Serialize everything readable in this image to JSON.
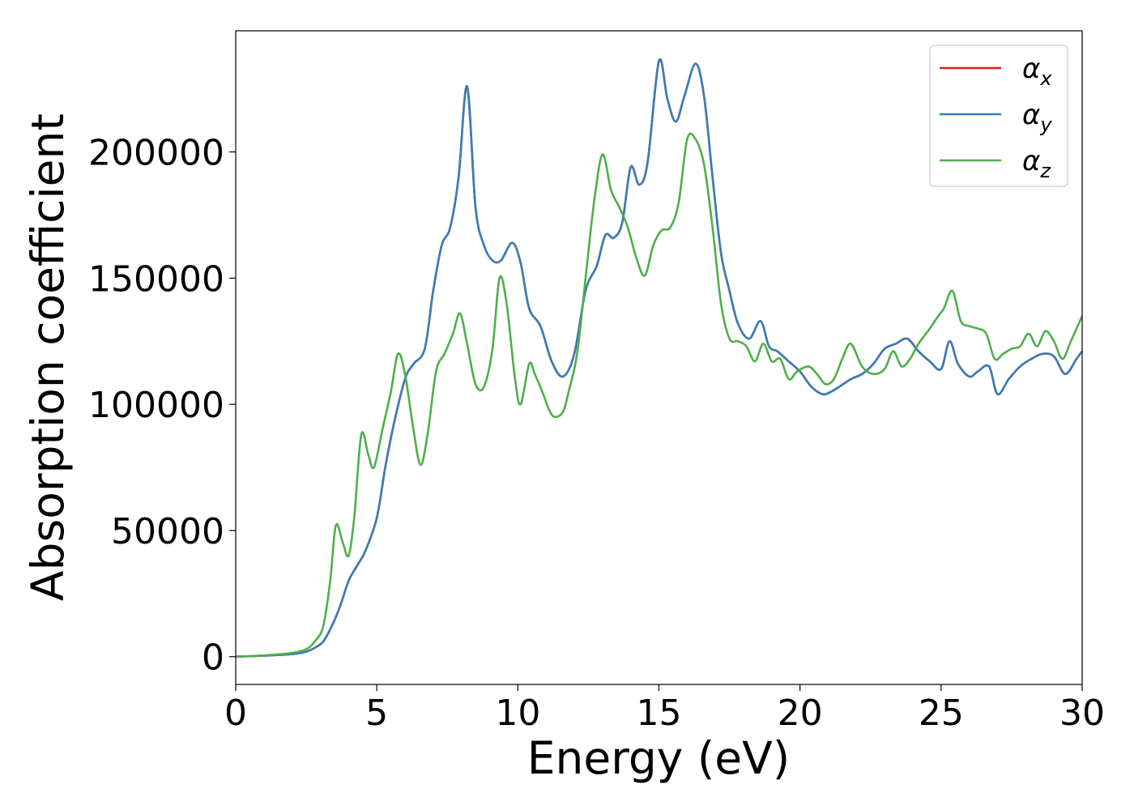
{
  "chart_data": {
    "type": "line",
    "title": "",
    "xlabel": "Energy (eV)",
    "ylabel": "Absorption coefficient",
    "xlim": [
      0,
      30
    ],
    "ylim": [
      -11000,
      248000
    ],
    "xticks": [
      0,
      5,
      10,
      15,
      20,
      25,
      30
    ],
    "yticks": [
      0,
      50000,
      100000,
      150000,
      200000
    ],
    "grid": false,
    "legend": {
      "placement": "top-right",
      "entries": [
        {
          "base": "α",
          "sub": "x",
          "color": "#e41a1c"
        },
        {
          "base": "α",
          "sub": "y",
          "color": "#377eb8"
        },
        {
          "base": "α",
          "sub": "z",
          "color": "#4daf4a"
        }
      ]
    },
    "series": [
      {
        "name": "α_x",
        "color": "#e41a1c",
        "x": [
          0,
          1,
          2,
          2.5,
          2.8,
          3.1,
          3.4,
          3.7,
          4.0,
          4.3,
          4.6,
          5.0,
          5.3,
          5.6,
          6.0,
          6.3,
          6.7,
          7.0,
          7.3,
          7.6,
          7.9,
          8.2,
          8.5,
          8.8,
          9.1,
          9.4,
          9.8,
          10.1,
          10.4,
          10.8,
          11.2,
          11.6,
          12.0,
          12.4,
          12.8,
          13.1,
          13.4,
          13.7,
          14.0,
          14.3,
          14.6,
          15.0,
          15.3,
          15.6,
          15.9,
          16.3,
          16.6,
          16.9,
          17.2,
          17.5,
          17.8,
          18.2,
          18.6,
          18.9,
          19.2,
          19.6,
          20.0,
          20.4,
          20.8,
          21.1,
          21.4,
          21.8,
          22.2,
          22.6,
          23.0,
          23.4,
          23.8,
          24.2,
          24.6,
          25.0,
          25.3,
          25.6,
          26.0,
          26.3,
          26.7,
          27.0,
          27.4,
          27.8,
          28.2,
          28.6,
          29.0,
          29.4,
          29.8,
          30.0
        ],
        "y": [
          0,
          400,
          1000,
          2000,
          3500,
          6000,
          12000,
          20000,
          30000,
          36000,
          42000,
          55000,
          75000,
          92000,
          110000,
          116000,
          122000,
          145000,
          163000,
          170000,
          190000,
          226000,
          178000,
          163000,
          157000,
          157000,
          164000,
          156000,
          138000,
          131000,
          117000,
          111000,
          120000,
          145000,
          155000,
          167000,
          166000,
          172000,
          194000,
          187000,
          196000,
          236000,
          221000,
          212000,
          222000,
          235000,
          222000,
          190000,
          160000,
          145000,
          132000,
          126000,
          133000,
          123000,
          121000,
          117000,
          113000,
          107000,
          104000,
          105000,
          107000,
          110000,
          112000,
          116000,
          122000,
          124000,
          126000,
          121000,
          117000,
          114000,
          125000,
          116000,
          111000,
          113000,
          115000,
          104000,
          110000,
          115000,
          118000,
          120000,
          119000,
          112000,
          118000,
          121000
        ]
      },
      {
        "name": "α_y",
        "color": "#377eb8",
        "x": [
          0,
          1,
          2,
          2.5,
          2.8,
          3.1,
          3.4,
          3.7,
          4.0,
          4.3,
          4.6,
          5.0,
          5.3,
          5.6,
          6.0,
          6.3,
          6.7,
          7.0,
          7.3,
          7.6,
          7.9,
          8.2,
          8.5,
          8.8,
          9.1,
          9.4,
          9.8,
          10.1,
          10.4,
          10.8,
          11.2,
          11.6,
          12.0,
          12.4,
          12.8,
          13.1,
          13.4,
          13.7,
          14.0,
          14.3,
          14.6,
          15.0,
          15.3,
          15.6,
          15.9,
          16.3,
          16.6,
          16.9,
          17.2,
          17.5,
          17.8,
          18.2,
          18.6,
          18.9,
          19.2,
          19.6,
          20.0,
          20.4,
          20.8,
          21.1,
          21.4,
          21.8,
          22.2,
          22.6,
          23.0,
          23.4,
          23.8,
          24.2,
          24.6,
          25.0,
          25.3,
          25.6,
          26.0,
          26.3,
          26.7,
          27.0,
          27.4,
          27.8,
          28.2,
          28.6,
          29.0,
          29.4,
          29.8,
          30.0
        ],
        "y": [
          0,
          400,
          1000,
          2000,
          3500,
          6000,
          12000,
          20000,
          30000,
          36000,
          42000,
          55000,
          75000,
          92000,
          110000,
          116000,
          122000,
          145000,
          163000,
          170000,
          190000,
          226000,
          178000,
          163000,
          157000,
          157000,
          164000,
          156000,
          138000,
          131000,
          117000,
          111000,
          120000,
          145000,
          155000,
          167000,
          166000,
          172000,
          194000,
          187000,
          196000,
          236000,
          221000,
          212000,
          222000,
          235000,
          222000,
          190000,
          160000,
          145000,
          132000,
          126000,
          133000,
          123000,
          121000,
          117000,
          113000,
          107000,
          104000,
          105000,
          107000,
          110000,
          112000,
          116000,
          122000,
          124000,
          126000,
          121000,
          117000,
          114000,
          125000,
          116000,
          111000,
          113000,
          115000,
          104000,
          110000,
          115000,
          118000,
          120000,
          119000,
          112000,
          118000,
          121000
        ]
      },
      {
        "name": "α_z",
        "color": "#4daf4a",
        "x": [
          0,
          1,
          2,
          2.5,
          2.8,
          3.1,
          3.35,
          3.55,
          3.8,
          4.0,
          4.2,
          4.45,
          4.7,
          4.9,
          5.2,
          5.5,
          5.75,
          6.0,
          6.3,
          6.55,
          6.8,
          7.1,
          7.4,
          7.7,
          7.95,
          8.2,
          8.5,
          8.8,
          9.1,
          9.35,
          9.6,
          9.9,
          10.1,
          10.4,
          10.6,
          10.9,
          11.1,
          11.3,
          11.6,
          11.8,
          12.1,
          12.4,
          12.7,
          13.0,
          13.3,
          13.6,
          13.9,
          14.2,
          14.5,
          14.8,
          15.1,
          15.4,
          15.7,
          16.0,
          16.3,
          16.6,
          16.9,
          17.2,
          17.5,
          17.8,
          18.1,
          18.4,
          18.7,
          19.0,
          19.3,
          19.6,
          19.9,
          20.3,
          20.6,
          20.9,
          21.2,
          21.5,
          21.8,
          22.2,
          22.6,
          23.0,
          23.3,
          23.6,
          23.9,
          24.2,
          24.6,
          24.9,
          25.1,
          25.4,
          25.7,
          26.0,
          26.3,
          26.6,
          26.9,
          27.2,
          27.5,
          27.8,
          28.1,
          28.4,
          28.7,
          29.0,
          29.3,
          29.6,
          30.0
        ],
        "y": [
          0,
          500,
          1500,
          3000,
          6000,
          12000,
          30000,
          52000,
          45000,
          40000,
          55000,
          88000,
          80000,
          75000,
          90000,
          105000,
          120000,
          112000,
          90000,
          76000,
          88000,
          113000,
          120000,
          128000,
          136000,
          124000,
          108000,
          107000,
          122000,
          150000,
          140000,
          110000,
          100000,
          116000,
          112000,
          104000,
          98000,
          95000,
          97000,
          105000,
          120000,
          150000,
          180000,
          199000,
          185000,
          178000,
          170000,
          158000,
          151000,
          163000,
          169000,
          170000,
          180000,
          205000,
          205000,
          195000,
          170000,
          140000,
          126000,
          125000,
          123000,
          117000,
          124000,
          117000,
          118000,
          110000,
          113000,
          115000,
          112000,
          108000,
          110000,
          118000,
          124000,
          115000,
          112000,
          114000,
          121000,
          115000,
          118000,
          124000,
          130000,
          135000,
          138000,
          145000,
          133000,
          131000,
          130000,
          128000,
          118000,
          120000,
          122000,
          123000,
          128000,
          123000,
          129000,
          125000,
          118000,
          125000,
          135000
        ]
      }
    ]
  }
}
